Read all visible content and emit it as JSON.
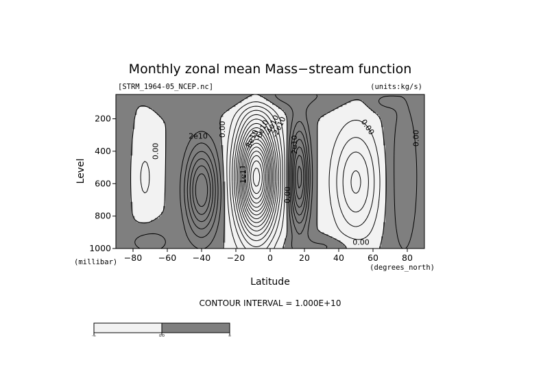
{
  "chart_data": {
    "type": "contour",
    "title": "Monthly zonal mean Mass−stream function",
    "file_label": "[STRM_1964-05_NCEP.nc]",
    "units_label": "(units:kg/s)",
    "xlabel": "Latitude",
    "x_unit_label": "(degrees_north)",
    "ylabel": "Level",
    "y_unit_label": "(millibar)",
    "xlim": [
      -90,
      90
    ],
    "ylim": [
      1000,
      50
    ],
    "x_ticks": [
      -80,
      -60,
      -40,
      -20,
      0,
      20,
      40,
      60,
      80
    ],
    "y_ticks": [
      200,
      400,
      600,
      800,
      1000
    ],
    "contour_interval_text": "CONTOUR INTERVAL = 1.000E+10",
    "contour_interval": 10000000000.0,
    "shading": {
      "negative": "#f2f2f2",
      "positive": "#7f7f7f"
    },
    "cells": [
      {
        "sign": "positive",
        "center": [
          -40,
          640
        ],
        "peak": 70000000000.0
      },
      {
        "sign": "negative",
        "center": [
          -8,
          560
        ],
        "peak": -160000000000.0
      },
      {
        "sign": "positive",
        "center": [
          17,
          560
        ],
        "peak": 70000000000.0
      },
      {
        "sign": "negative",
        "center": [
          50,
          580
        ],
        "peak": -40000000000.0
      },
      {
        "sign": "negative",
        "center": [
          -73,
          560
        ],
        "peak": -10000000000.0
      }
    ],
    "contour_labels": [
      {
        "text": "0.00",
        "x": -67,
        "y": 400,
        "rotate": -90
      },
      {
        "text": "2e10",
        "x": -42,
        "y": 305,
        "rotate": 0
      },
      {
        "text": "0.00",
        "x": -28,
        "y": 265,
        "rotate": -90
      },
      {
        "text": "-1e11",
        "x": -16,
        "y": 550,
        "rotate": -90
      },
      {
        "text": "-8e10",
        "x": -11,
        "y": 330,
        "rotate": -65
      },
      {
        "text": "-6e10",
        "x": -5,
        "y": 270,
        "rotate": -65
      },
      {
        "text": "-4e10",
        "x": 1,
        "y": 240,
        "rotate": -65
      },
      {
        "text": "-2e10",
        "x": 5,
        "y": 250,
        "rotate": -65
      },
      {
        "text": "2e10",
        "x": 14,
        "y": 360,
        "rotate": -90
      },
      {
        "text": "0.00",
        "x": 10,
        "y": 670,
        "rotate": -90
      },
      {
        "text": "0.00",
        "x": 57,
        "y": 250,
        "rotate": 55
      },
      {
        "text": "0.00",
        "x": 53,
        "y": 960,
        "rotate": 0
      },
      {
        "text": "0.00",
        "x": 85,
        "y": 320,
        "rotate": -90
      }
    ],
    "colorbar": {
      "labels": [
        "-∞",
        "0.0",
        "∞"
      ],
      "colors": [
        "#f2f2f2",
        "#7f7f7f"
      ]
    }
  }
}
